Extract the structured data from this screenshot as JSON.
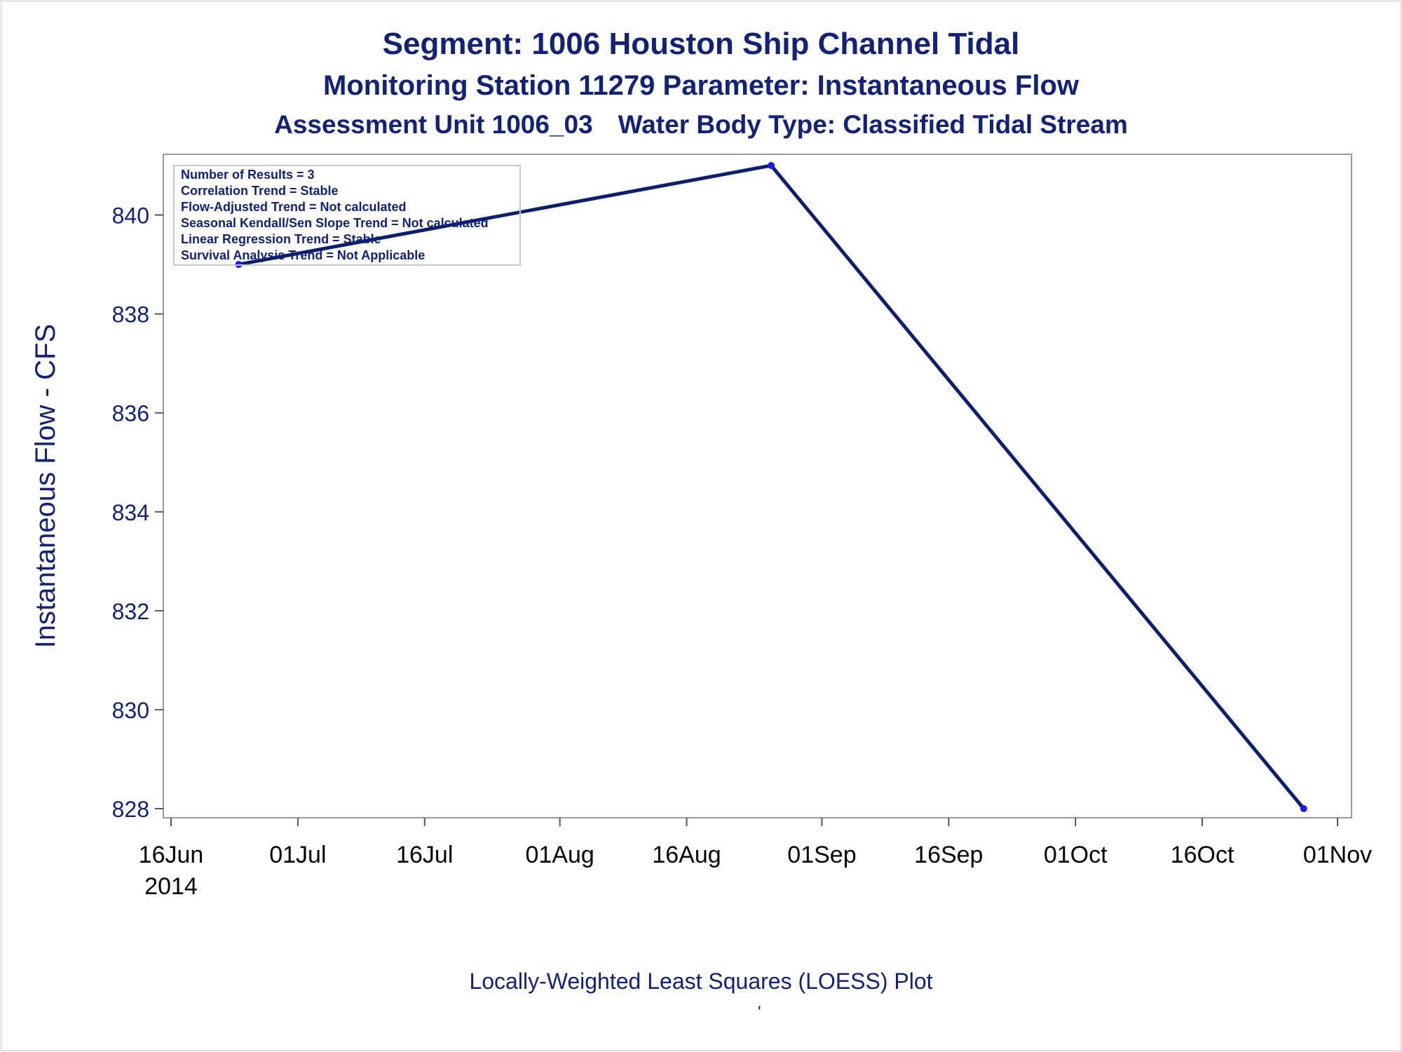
{
  "titles": {
    "line1": "Segment: 1006  Houston Ship Channel Tidal",
    "line2": "Monitoring Station 11279 Parameter: Instantaneous Flow",
    "line3a": "Assessment Unit 1006_03",
    "line3b": "Water Body Type: Classified Tidal Stream"
  },
  "footnote": "Locally-Weighted Least Squares (LOESS) Plot",
  "footnote_mark": "'",
  "stats_box": [
    "Number of Results = 3",
    "Correlation Trend = Stable",
    "Flow-Adjusted Trend = Not calculated",
    "Seasonal Kendall/Sen Slope Trend = Not calculated",
    "Linear Regression Trend = Stable",
    "Survival Analysis Trend = Not Applicable"
  ],
  "colors": {
    "line": "#0b1f6e",
    "marker": "#1a1aff",
    "text": "#112277",
    "axis": "#9a9a9a"
  },
  "chart_data": {
    "type": "line",
    "title": "Segment: 1006  Houston Ship Channel Tidal",
    "xlabel": "",
    "ylabel": "Instantaneous Flow - CFS",
    "xlim": [
      "2014-06-16",
      "2014-11-01"
    ],
    "ylim": [
      828,
      841
    ],
    "yticks": [
      828,
      830,
      832,
      834,
      836,
      838,
      840
    ],
    "xticks": [
      {
        "date": "2014-06-16",
        "label": "16Jun",
        "sublabel": "2014"
      },
      {
        "date": "2014-07-01",
        "label": "01Jul"
      },
      {
        "date": "2014-07-16",
        "label": "16Jul"
      },
      {
        "date": "2014-08-01",
        "label": "01Aug"
      },
      {
        "date": "2014-08-16",
        "label": "16Aug"
      },
      {
        "date": "2014-09-01",
        "label": "01Sep"
      },
      {
        "date": "2014-09-16",
        "label": "16Sep"
      },
      {
        "date": "2014-10-01",
        "label": "01Oct"
      },
      {
        "date": "2014-10-16",
        "label": "16Oct"
      },
      {
        "date": "2014-11-01",
        "label": "01Nov"
      }
    ],
    "points": [
      {
        "x": "2014-06-24",
        "y": 839
      },
      {
        "x": "2014-08-26",
        "y": 841
      },
      {
        "x": "2014-10-28",
        "y": 828
      }
    ],
    "grid": false
  }
}
